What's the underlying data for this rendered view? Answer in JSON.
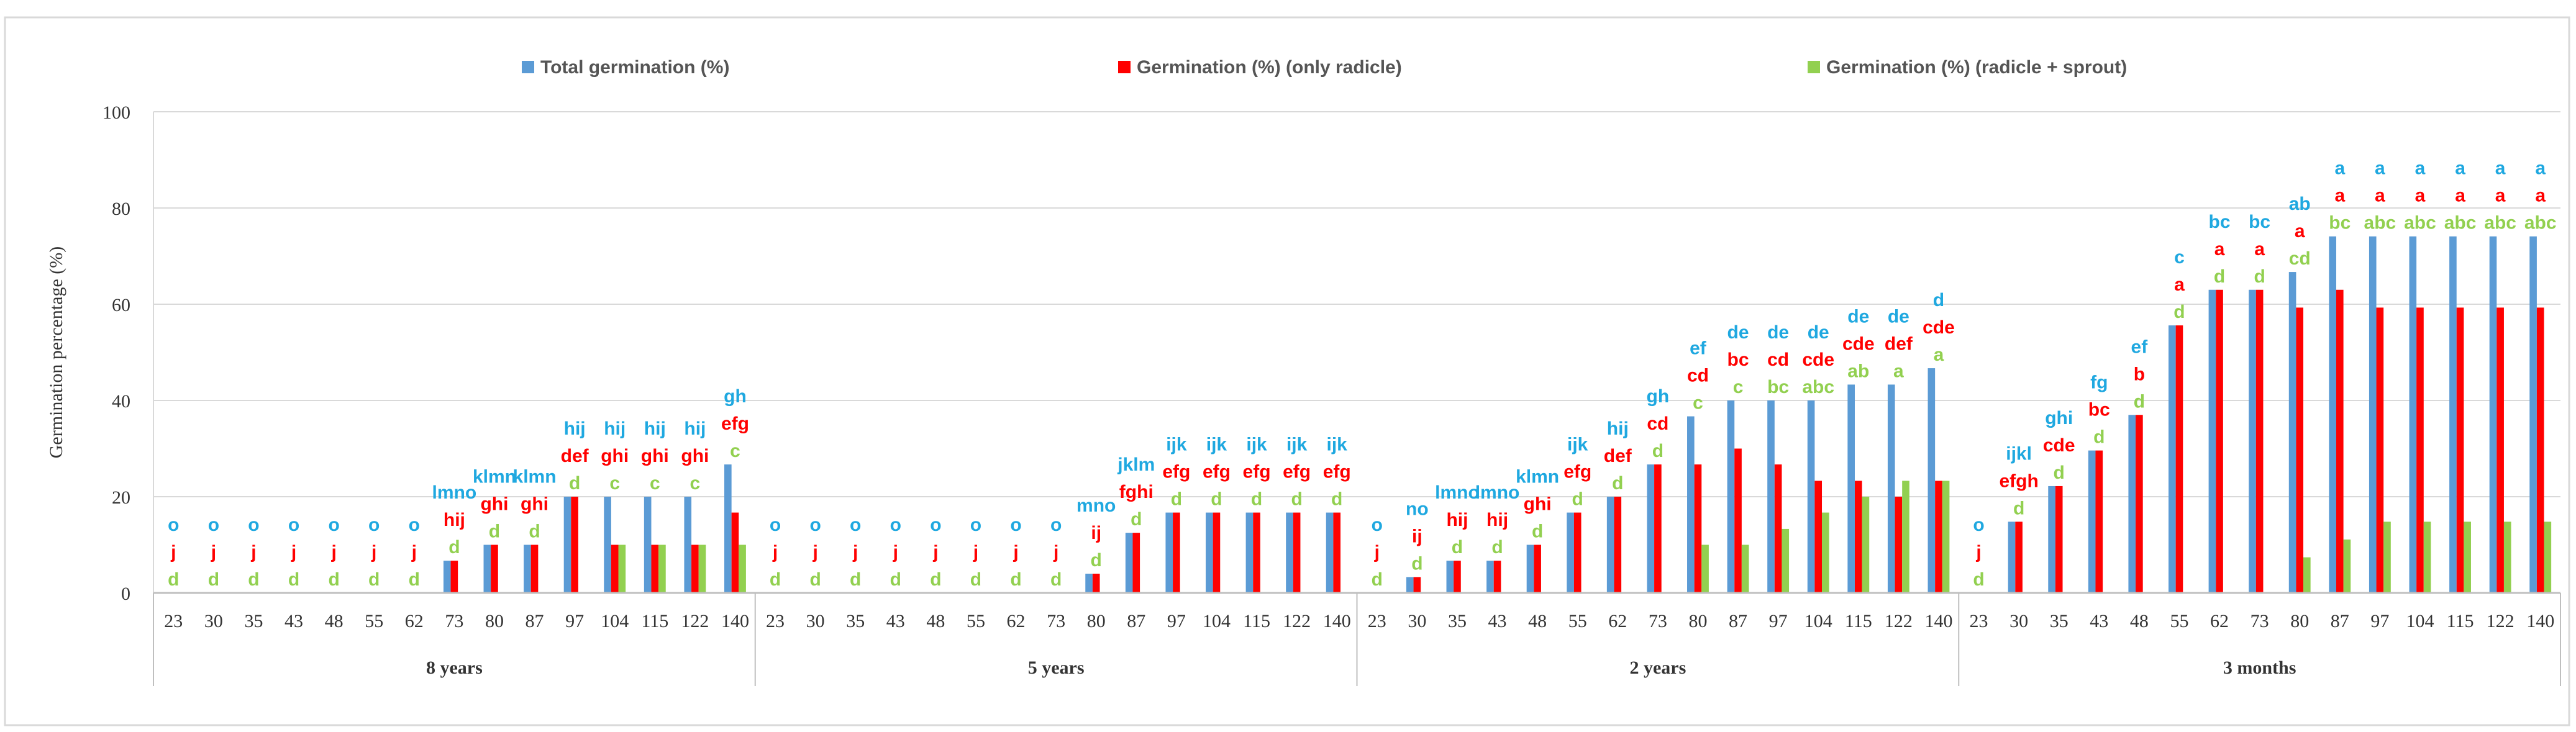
{
  "chart_data": {
    "type": "bar",
    "title": "",
    "xlabel": "",
    "ylabel": "Germination percentage (%)",
    "ylim": [
      0,
      100
    ],
    "yticks": [
      "0",
      "20",
      "40",
      "60",
      "80",
      "100"
    ],
    "grid": true,
    "legend_position": "top",
    "day_labels": [
      "23",
      "30",
      "35",
      "43",
      "48",
      "55",
      "62",
      "73",
      "80",
      "87",
      "97",
      "104",
      "115",
      "122",
      "140"
    ],
    "series": [
      {
        "name": "Total germination (%)",
        "color": "#5B9BD5",
        "letter_color": "#1FA8E0"
      },
      {
        "name": "Germination (%)  (only radicle)",
        "color": "#FF0000",
        "letter_color": "#FF0000"
      },
      {
        "name": "Germination (%) (radicle + sprout)",
        "color": "#92D050",
        "letter_color": "#92D050"
      }
    ],
    "groups": [
      {
        "label": "8 years",
        "total": [
          0,
          0,
          0,
          0,
          0,
          0,
          0,
          6.7,
          10,
          10,
          20,
          20,
          20,
          20,
          26.7
        ],
        "radicle": [
          0,
          0,
          0,
          0,
          0,
          0,
          0,
          6.7,
          10,
          10,
          20,
          10,
          10,
          10,
          16.7
        ],
        "sprout": [
          0,
          0,
          0,
          0,
          0,
          0,
          0,
          0,
          0,
          0,
          0,
          10,
          10,
          10,
          10
        ],
        "letters_total": [
          "o",
          "o",
          "o",
          "o",
          "o",
          "o",
          "o",
          "lmno",
          "klmn",
          "klmn",
          "hij",
          "hij",
          "hij",
          "hij",
          "gh"
        ],
        "letters_radicle": [
          "j",
          "j",
          "j",
          "j",
          "j",
          "j",
          "j",
          "hij",
          "ghi",
          "ghi",
          "def",
          "ghi",
          "ghi",
          "ghi",
          "efg"
        ],
        "letters_sprout": [
          "d",
          "d",
          "d",
          "d",
          "d",
          "d",
          "d",
          "d",
          "d",
          "d",
          "d",
          "c",
          "c",
          "c",
          "c"
        ]
      },
      {
        "label": "5 years",
        "total": [
          0,
          0,
          0,
          0,
          0,
          0,
          0,
          0,
          4,
          12.5,
          16.7,
          16.7,
          16.7,
          16.7,
          16.7
        ],
        "radicle": [
          0,
          0,
          0,
          0,
          0,
          0,
          0,
          0,
          4,
          12.5,
          16.7,
          16.7,
          16.7,
          16.7,
          16.7
        ],
        "sprout": [
          0,
          0,
          0,
          0,
          0,
          0,
          0,
          0,
          0,
          0,
          0,
          0,
          0,
          0,
          0
        ],
        "letters_total": [
          "o",
          "o",
          "o",
          "o",
          "o",
          "o",
          "o",
          "o",
          "mno",
          "jklm",
          "ijk",
          "ijk",
          "ijk",
          "ijk",
          "ijk"
        ],
        "letters_radicle": [
          "j",
          "j",
          "j",
          "j",
          "j",
          "j",
          "j",
          "j",
          "ij",
          "fghi",
          "efg",
          "efg",
          "efg",
          "efg",
          "efg"
        ],
        "letters_sprout": [
          "d",
          "d",
          "d",
          "d",
          "d",
          "d",
          "d",
          "d",
          "d",
          "d",
          "d",
          "d",
          "d",
          "d",
          "d"
        ]
      },
      {
        "label": "2 years",
        "total": [
          0,
          3.3,
          6.7,
          6.7,
          10,
          16.7,
          20,
          26.7,
          36.7,
          40,
          40,
          40,
          43.3,
          43.3,
          46.7
        ],
        "radicle": [
          0,
          3.3,
          6.7,
          6.7,
          10,
          16.7,
          20,
          26.7,
          26.7,
          30,
          26.7,
          23.3,
          23.3,
          20,
          23.3
        ],
        "sprout": [
          0,
          0,
          0,
          0,
          0,
          0,
          0,
          0,
          10,
          10,
          13.3,
          16.7,
          20,
          23.3,
          23.3
        ],
        "letters_total": [
          "o",
          "no",
          "lmno",
          "lmno",
          "klmn",
          "ijk",
          "hij",
          "gh",
          "ef",
          "de",
          "de",
          "de",
          "de",
          "de",
          "d"
        ],
        "letters_radicle": [
          "j",
          "ij",
          "hij",
          "hij",
          "ghi",
          "efg",
          "def",
          "cd",
          "cd",
          "bc",
          "cd",
          "cde",
          "cde",
          "def",
          "cde"
        ],
        "letters_sprout": [
          "d",
          "d",
          "d",
          "d",
          "d",
          "d",
          "d",
          "d",
          "c",
          "c",
          "bc",
          "abc",
          "ab",
          "a",
          "a"
        ]
      },
      {
        "label": "3 months",
        "total": [
          0,
          14.8,
          22.2,
          29.6,
          37,
          55.6,
          63,
          63,
          66.7,
          74.1,
          74.1,
          74.1,
          74.1,
          74.1,
          74.1
        ],
        "radicle": [
          0,
          14.8,
          22.2,
          29.6,
          37,
          55.6,
          63,
          63,
          59.3,
          63,
          59.3,
          59.3,
          59.3,
          59.3,
          59.3
        ],
        "sprout": [
          0,
          0,
          0,
          0,
          0,
          0,
          0,
          0,
          7.4,
          11.1,
          14.8,
          14.8,
          14.8,
          14.8,
          14.8
        ],
        "letters_total": [
          "o",
          "ijkl",
          "ghi",
          "fg",
          "ef",
          "c",
          "bc",
          "bc",
          "ab",
          "a",
          "a",
          "a",
          "a",
          "a",
          "a"
        ],
        "letters_radicle": [
          "j",
          "efgh",
          "cde",
          "bc",
          "b",
          "a",
          "a",
          "a",
          "a",
          "a",
          "a",
          "a",
          "a",
          "a",
          "a"
        ],
        "letters_sprout": [
          "d",
          "d",
          "d",
          "d",
          "d",
          "d",
          "d",
          "d",
          "cd",
          "bc",
          "abc",
          "abc",
          "abc",
          "abc",
          "abc"
        ]
      }
    ]
  }
}
